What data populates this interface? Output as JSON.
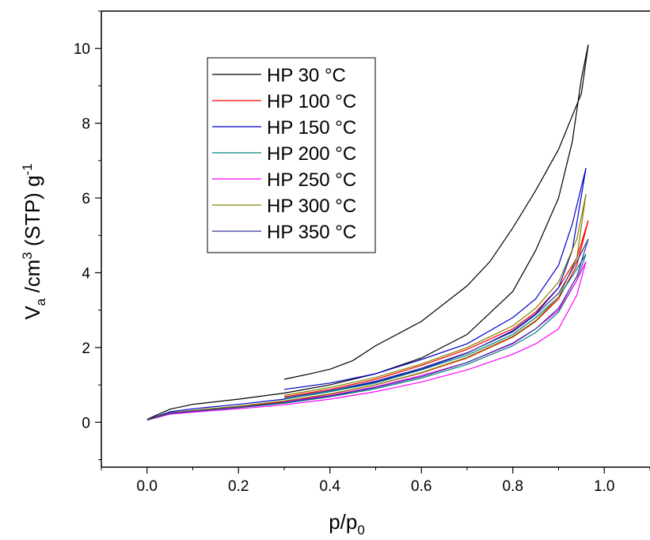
{
  "chart_data": {
    "type": "line",
    "title": "",
    "xlabel": {
      "main": "p/p",
      "sub": "0"
    },
    "ylabel": {
      "main": "V",
      "sub": "a",
      "mid": " /cm",
      "sup": "3",
      "tail": " (STP) g",
      "sup2": "-1"
    },
    "xlim": [
      -0.1,
      1.1
    ],
    "ylim": [
      -1.2,
      11.0
    ],
    "xticks": [
      0.0,
      0.2,
      0.4,
      0.6,
      0.8,
      1.0
    ],
    "xtick_labels": [
      "0.0",
      "0.2",
      "0.4",
      "0.6",
      "0.8",
      "1.0"
    ],
    "yticks": [
      0,
      2,
      4,
      6,
      8,
      10
    ],
    "ytick_labels": [
      "0",
      "2",
      "4",
      "6",
      "8",
      "10"
    ],
    "grid": false,
    "legend_position": "top-left",
    "series": [
      {
        "name": "HP 30 °C",
        "color": "#000000",
        "adsorption": [
          [
            0.0,
            0.08
          ],
          [
            0.05,
            0.35
          ],
          [
            0.1,
            0.48
          ],
          [
            0.2,
            0.62
          ],
          [
            0.3,
            0.78
          ],
          [
            0.4,
            1.0
          ],
          [
            0.5,
            1.3
          ],
          [
            0.6,
            1.72
          ],
          [
            0.7,
            2.35
          ],
          [
            0.8,
            3.5
          ],
          [
            0.85,
            4.6
          ],
          [
            0.9,
            6.0
          ],
          [
            0.93,
            7.5
          ],
          [
            0.95,
            9.2
          ],
          [
            0.965,
            10.1
          ]
        ],
        "desorption": [
          [
            0.965,
            10.1
          ],
          [
            0.95,
            8.8
          ],
          [
            0.9,
            7.3
          ],
          [
            0.85,
            6.2
          ],
          [
            0.8,
            5.2
          ],
          [
            0.75,
            4.3
          ],
          [
            0.7,
            3.65
          ],
          [
            0.6,
            2.7
          ],
          [
            0.5,
            2.05
          ],
          [
            0.45,
            1.65
          ],
          [
            0.4,
            1.42
          ],
          [
            0.35,
            1.28
          ],
          [
            0.3,
            1.15
          ]
        ]
      },
      {
        "name": "HP 100 °C",
        "color": "#ff0000",
        "adsorption": [
          [
            0.0,
            0.07
          ],
          [
            0.05,
            0.25
          ],
          [
            0.1,
            0.31
          ],
          [
            0.2,
            0.42
          ],
          [
            0.3,
            0.55
          ],
          [
            0.4,
            0.75
          ],
          [
            0.5,
            1.0
          ],
          [
            0.6,
            1.32
          ],
          [
            0.7,
            1.72
          ],
          [
            0.8,
            2.28
          ],
          [
            0.85,
            2.7
          ],
          [
            0.9,
            3.3
          ],
          [
            0.94,
            4.2
          ],
          [
            0.965,
            5.4
          ]
        ],
        "desorption": [
          [
            0.965,
            5.4
          ],
          [
            0.94,
            4.4
          ],
          [
            0.9,
            3.6
          ],
          [
            0.85,
            2.95
          ],
          [
            0.8,
            2.5
          ],
          [
            0.7,
            1.95
          ],
          [
            0.6,
            1.52
          ],
          [
            0.5,
            1.15
          ],
          [
            0.4,
            0.88
          ],
          [
            0.3,
            0.68
          ]
        ]
      },
      {
        "name": "HP 150 °C",
        "color": "#0000cc",
        "adsorption": [
          [
            0.0,
            0.07
          ],
          [
            0.05,
            0.28
          ],
          [
            0.1,
            0.36
          ],
          [
            0.2,
            0.48
          ],
          [
            0.3,
            0.62
          ],
          [
            0.4,
            0.82
          ],
          [
            0.5,
            1.08
          ],
          [
            0.6,
            1.42
          ],
          [
            0.7,
            1.85
          ],
          [
            0.8,
            2.45
          ],
          [
            0.85,
            2.9
          ],
          [
            0.9,
            3.6
          ],
          [
            0.93,
            4.6
          ],
          [
            0.96,
            6.8
          ]
        ],
        "desorption": [
          [
            0.96,
            6.8
          ],
          [
            0.93,
            5.3
          ],
          [
            0.9,
            4.2
          ],
          [
            0.85,
            3.3
          ],
          [
            0.8,
            2.8
          ],
          [
            0.7,
            2.1
          ],
          [
            0.6,
            1.68
          ],
          [
            0.5,
            1.3
          ],
          [
            0.4,
            1.05
          ],
          [
            0.3,
            0.88
          ]
        ]
      },
      {
        "name": "HP 200 °C",
        "color": "#008080",
        "adsorption": [
          [
            0.0,
            0.06
          ],
          [
            0.05,
            0.23
          ],
          [
            0.1,
            0.29
          ],
          [
            0.2,
            0.39
          ],
          [
            0.3,
            0.51
          ],
          [
            0.4,
            0.68
          ],
          [
            0.5,
            0.9
          ],
          [
            0.6,
            1.18
          ],
          [
            0.7,
            1.55
          ],
          [
            0.8,
            2.05
          ],
          [
            0.85,
            2.4
          ],
          [
            0.9,
            2.95
          ],
          [
            0.94,
            3.8
          ],
          [
            0.96,
            4.5
          ]
        ],
        "desorption": [
          [
            0.96,
            4.5
          ],
          [
            0.94,
            4.1
          ],
          [
            0.9,
            3.35
          ],
          [
            0.85,
            2.8
          ],
          [
            0.8,
            2.35
          ],
          [
            0.7,
            1.8
          ],
          [
            0.6,
            1.4
          ],
          [
            0.5,
            1.05
          ],
          [
            0.4,
            0.82
          ],
          [
            0.3,
            0.62
          ]
        ]
      },
      {
        "name": "HP 250 °C",
        "color": "#ff00ff",
        "adsorption": [
          [
            0.0,
            0.06
          ],
          [
            0.05,
            0.22
          ],
          [
            0.1,
            0.27
          ],
          [
            0.2,
            0.36
          ],
          [
            0.3,
            0.47
          ],
          [
            0.4,
            0.62
          ],
          [
            0.5,
            0.82
          ],
          [
            0.6,
            1.08
          ],
          [
            0.7,
            1.4
          ],
          [
            0.8,
            1.82
          ],
          [
            0.85,
            2.1
          ],
          [
            0.9,
            2.5
          ],
          [
            0.94,
            3.4
          ],
          [
            0.96,
            4.3
          ]
        ],
        "desorption": [
          [
            0.96,
            4.3
          ],
          [
            0.94,
            3.8
          ],
          [
            0.9,
            3.0
          ],
          [
            0.85,
            2.5
          ],
          [
            0.8,
            2.1
          ],
          [
            0.7,
            1.6
          ],
          [
            0.6,
            1.25
          ],
          [
            0.5,
            0.95
          ],
          [
            0.4,
            0.72
          ],
          [
            0.3,
            0.55
          ]
        ]
      },
      {
        "name": "HP 300 °C",
        "color": "#808000",
        "adsorption": [
          [
            0.0,
            0.07
          ],
          [
            0.05,
            0.25
          ],
          [
            0.1,
            0.32
          ],
          [
            0.2,
            0.43
          ],
          [
            0.3,
            0.57
          ],
          [
            0.4,
            0.76
          ],
          [
            0.5,
            1.0
          ],
          [
            0.6,
            1.33
          ],
          [
            0.7,
            1.74
          ],
          [
            0.8,
            2.3
          ],
          [
            0.85,
            2.72
          ],
          [
            0.9,
            3.35
          ],
          [
            0.94,
            4.4
          ],
          [
            0.96,
            6.1
          ]
        ],
        "desorption": [
          [
            0.96,
            6.1
          ],
          [
            0.94,
            4.9
          ],
          [
            0.9,
            3.75
          ],
          [
            0.85,
            3.05
          ],
          [
            0.8,
            2.58
          ],
          [
            0.7,
            2.0
          ],
          [
            0.6,
            1.56
          ],
          [
            0.5,
            1.2
          ],
          [
            0.4,
            0.93
          ],
          [
            0.3,
            0.72
          ]
        ]
      },
      {
        "name": "HP 350 °C",
        "color": "#333399",
        "adsorption": [
          [
            0.0,
            0.06
          ],
          [
            0.05,
            0.24
          ],
          [
            0.1,
            0.3
          ],
          [
            0.2,
            0.4
          ],
          [
            0.3,
            0.53
          ],
          [
            0.4,
            0.7
          ],
          [
            0.5,
            0.93
          ],
          [
            0.6,
            1.22
          ],
          [
            0.7,
            1.6
          ],
          [
            0.8,
            2.12
          ],
          [
            0.85,
            2.5
          ],
          [
            0.9,
            3.05
          ],
          [
            0.94,
            3.9
          ],
          [
            0.965,
            4.9
          ]
        ],
        "desorption": [
          [
            0.965,
            4.9
          ],
          [
            0.94,
            4.3
          ],
          [
            0.9,
            3.45
          ],
          [
            0.85,
            2.88
          ],
          [
            0.8,
            2.42
          ],
          [
            0.7,
            1.86
          ],
          [
            0.6,
            1.45
          ],
          [
            0.5,
            1.1
          ],
          [
            0.4,
            0.85
          ],
          [
            0.3,
            0.65
          ]
        ]
      }
    ]
  }
}
